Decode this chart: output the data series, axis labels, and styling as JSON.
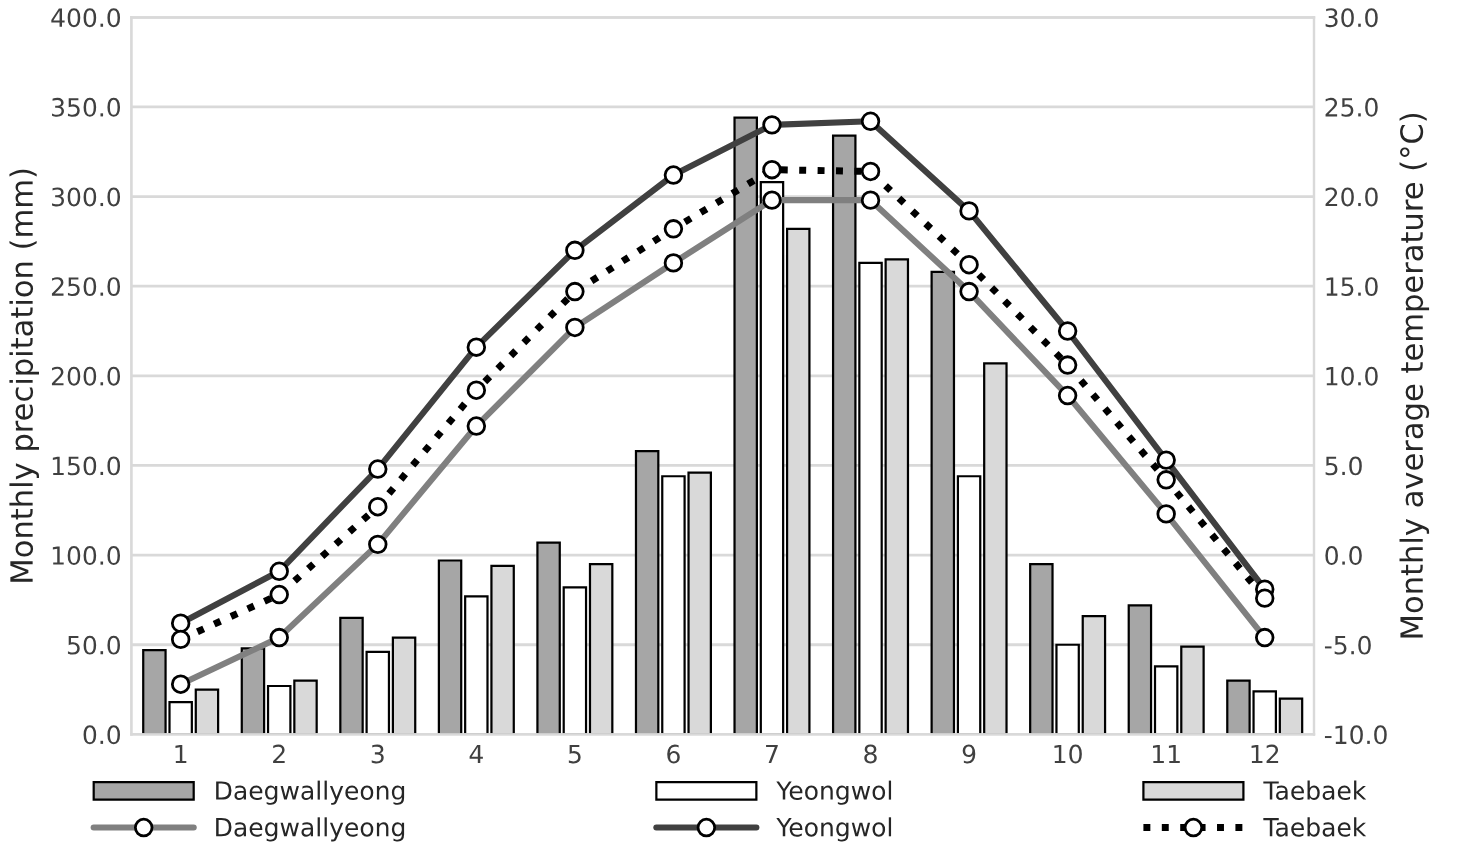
{
  "chart_data": {
    "type": "bar",
    "ylabel": "Monthly precipitation (mm)",
    "y2label": "Monthly average temperature (°C)",
    "categories": [
      "1",
      "2",
      "3",
      "4",
      "5",
      "6",
      "7",
      "8",
      "9",
      "10",
      "11",
      "12"
    ],
    "series": [
      {
        "name": "Daegwallyeong",
        "color": "#a6a6a6",
        "values": [
          47,
          48,
          65,
          97,
          107,
          158,
          344,
          334,
          258,
          95,
          72,
          30
        ]
      },
      {
        "name": "Yeongwol",
        "color": "#ffffff",
        "values": [
          18,
          27,
          46,
          77,
          82,
          144,
          308,
          263,
          144,
          50,
          38,
          24
        ]
      },
      {
        "name": "Taebaek",
        "color": "#d9d9d9",
        "values": [
          25,
          30,
          54,
          94,
          95,
          146,
          282,
          265,
          207,
          66,
          49,
          20
        ]
      },
      {
        "name": "Daegwallyeong",
        "type": "line",
        "axis": "y2",
        "color": "#808080",
        "line_style": "solid",
        "marker": "circle",
        "values": [
          -7.2,
          -4.6,
          0.6,
          7.2,
          12.7,
          16.3,
          19.8,
          19.8,
          14.7,
          8.9,
          2.3,
          -4.6
        ]
      },
      {
        "name": "Yeongwol",
        "type": "line",
        "axis": "y2",
        "color": "#404040",
        "line_style": "solid",
        "marker": "circle",
        "values": [
          -3.8,
          -0.9,
          4.8,
          11.6,
          17.0,
          21.2,
          24.0,
          24.2,
          19.2,
          12.5,
          5.3,
          -1.9
        ]
      },
      {
        "name": "Taebaek",
        "type": "line",
        "axis": "y2",
        "color": "#000000",
        "line_style": "dotted",
        "marker": "circle",
        "values": [
          -4.7,
          -2.2,
          2.7,
          9.2,
          14.7,
          18.2,
          21.5,
          21.4,
          16.2,
          10.6,
          4.2,
          -2.4
        ]
      }
    ],
    "ylim": [
      0,
      400
    ],
    "yticks": [
      {
        "value": 0,
        "label": "0.0"
      },
      {
        "value": 50,
        "label": "50.0"
      },
      {
        "value": 100,
        "label": "100.0"
      },
      {
        "value": 150,
        "label": "150.0"
      },
      {
        "value": 200,
        "label": "200.0"
      },
      {
        "value": 250,
        "label": "250.0"
      },
      {
        "value": 300,
        "label": "300.0"
      },
      {
        "value": 350,
        "label": "350.0"
      },
      {
        "value": 400,
        "label": "400.0"
      }
    ],
    "y2lim": [
      -10,
      30
    ],
    "y2ticks": [
      {
        "value": -10,
        "label": "-10.0"
      },
      {
        "value": -5,
        "label": "-5.0"
      },
      {
        "value": 0,
        "label": "0.0"
      },
      {
        "value": 5,
        "label": "5.0"
      },
      {
        "value": 10,
        "label": "10.0"
      },
      {
        "value": 15,
        "label": "15.0"
      },
      {
        "value": 20,
        "label": "20.0"
      },
      {
        "value": 25,
        "label": "25.0"
      },
      {
        "value": 30,
        "label": "30.0"
      }
    ],
    "grid": "y",
    "legend": "bottom"
  }
}
